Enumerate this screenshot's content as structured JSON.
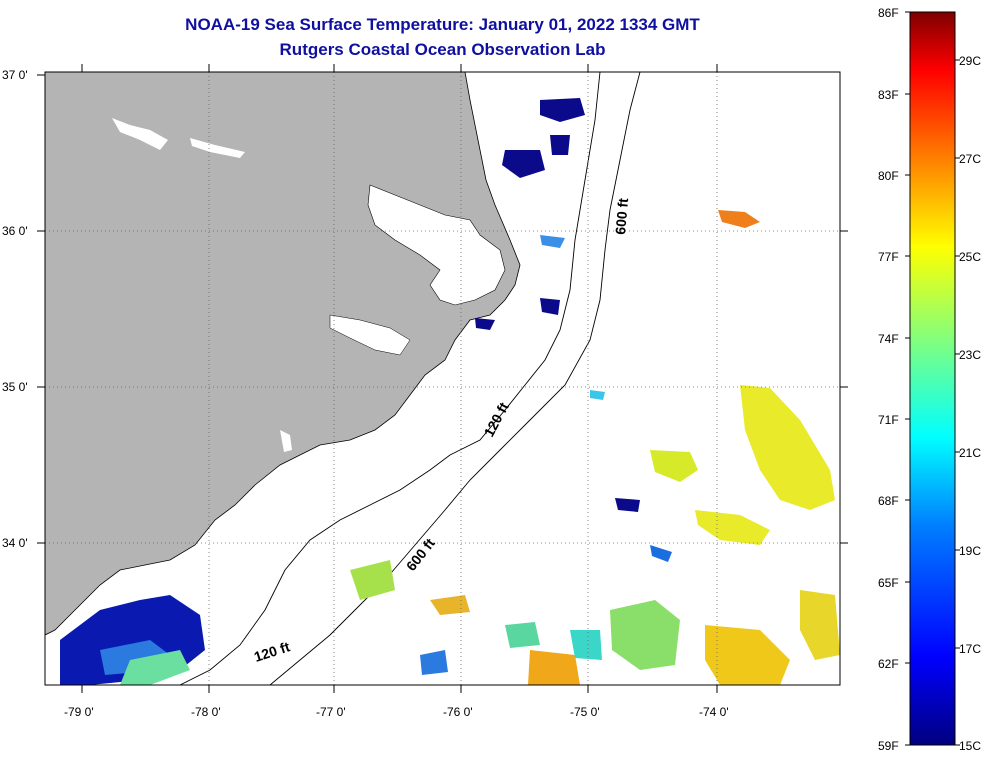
{
  "title": {
    "line1": "NOAA-19 Sea Surface Temperature:  January 01, 2022 1334 GMT",
    "line2": "Rutgers Coastal Ocean Observation Lab"
  },
  "map": {
    "lon_labels": [
      "-79 0'",
      "-78 0'",
      "-77 0'",
      "-76 0'",
      "-75 0'",
      "-74 0'"
    ],
    "lat_labels": [
      "37 0'",
      "36 0'",
      "35 0'",
      "34 0'"
    ],
    "contour_labels": [
      "600 ft",
      "120 ft",
      "600 ft",
      "120 ft"
    ],
    "colors": {
      "land": "#b4b4b4",
      "ocean": "#ffffff",
      "water_inland": "#ffffff"
    }
  },
  "colorbar": {
    "f_labels": [
      "86F",
      "83F",
      "80F",
      "77F",
      "74F",
      "71F",
      "68F",
      "65F",
      "62F",
      "59F"
    ],
    "c_labels": [
      "29C",
      "27C",
      "25C",
      "23C",
      "21C",
      "19C",
      "17C",
      "15C"
    ],
    "colors": [
      "#00007f",
      "#0000ff",
      "#007fff",
      "#00ffff",
      "#7fff7f",
      "#ffff00",
      "#ff7f00",
      "#ff0000",
      "#7f0000"
    ]
  }
}
